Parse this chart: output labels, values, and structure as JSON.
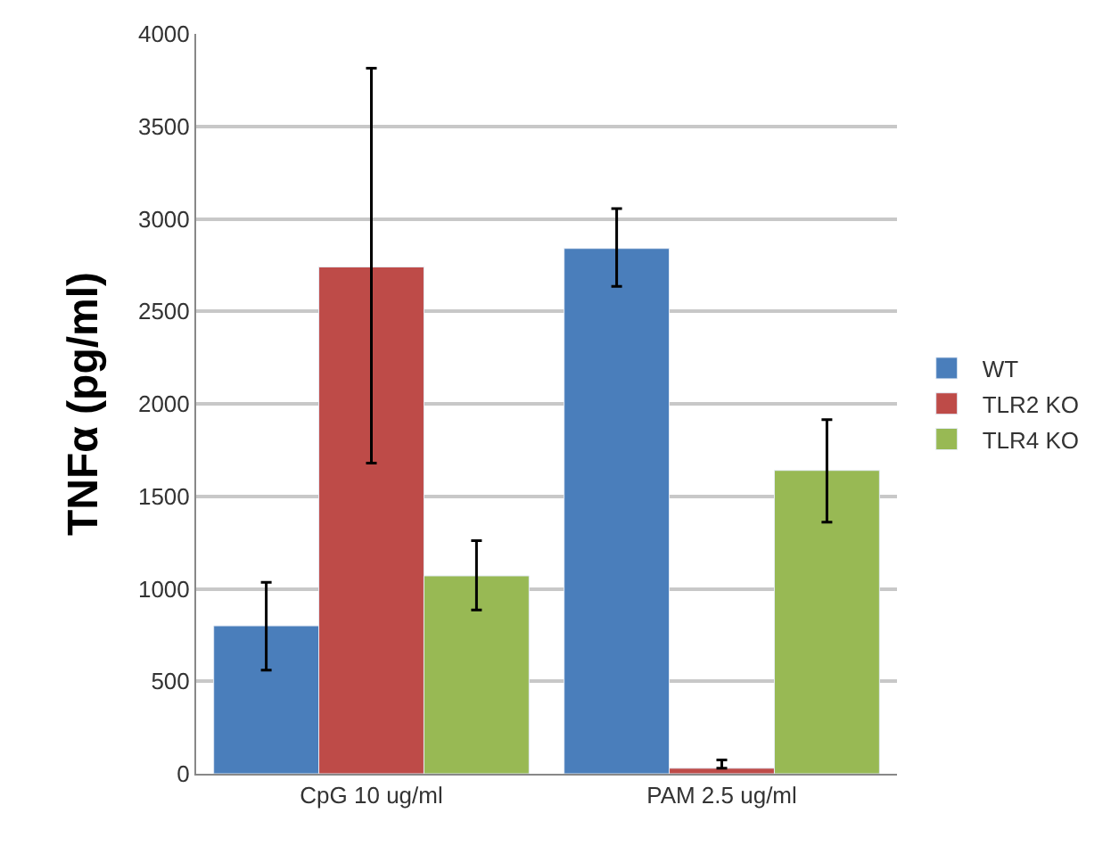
{
  "chart_data": {
    "type": "bar",
    "ylabel": "TNFα (pg/ml)",
    "categories": [
      "CpG 10 ug/ml",
      "PAM 2.5 ug/ml"
    ],
    "series": [
      {
        "name": "WT",
        "color": "#4a7ebb",
        "values": [
          800,
          2840
        ],
        "errors": [
          [
            560,
            1035
          ],
          [
            2635,
            3055
          ]
        ]
      },
      {
        "name": "TLR2 KO",
        "color": "#be4b48",
        "values": [
          2740,
          30
        ],
        "errors": [
          [
            1680,
            3815
          ],
          [
            30,
            75
          ]
        ]
      },
      {
        "name": "TLR4 KO",
        "color": "#98b954",
        "values": [
          1070,
          1640
        ],
        "errors": [
          [
            885,
            1260
          ],
          [
            1360,
            1915
          ]
        ]
      }
    ],
    "ylim": [
      0,
      4000
    ],
    "yticks": [
      0,
      500,
      1000,
      1500,
      2000,
      2500,
      3000,
      3500,
      4000
    ],
    "grid": "y",
    "legend": "right"
  }
}
